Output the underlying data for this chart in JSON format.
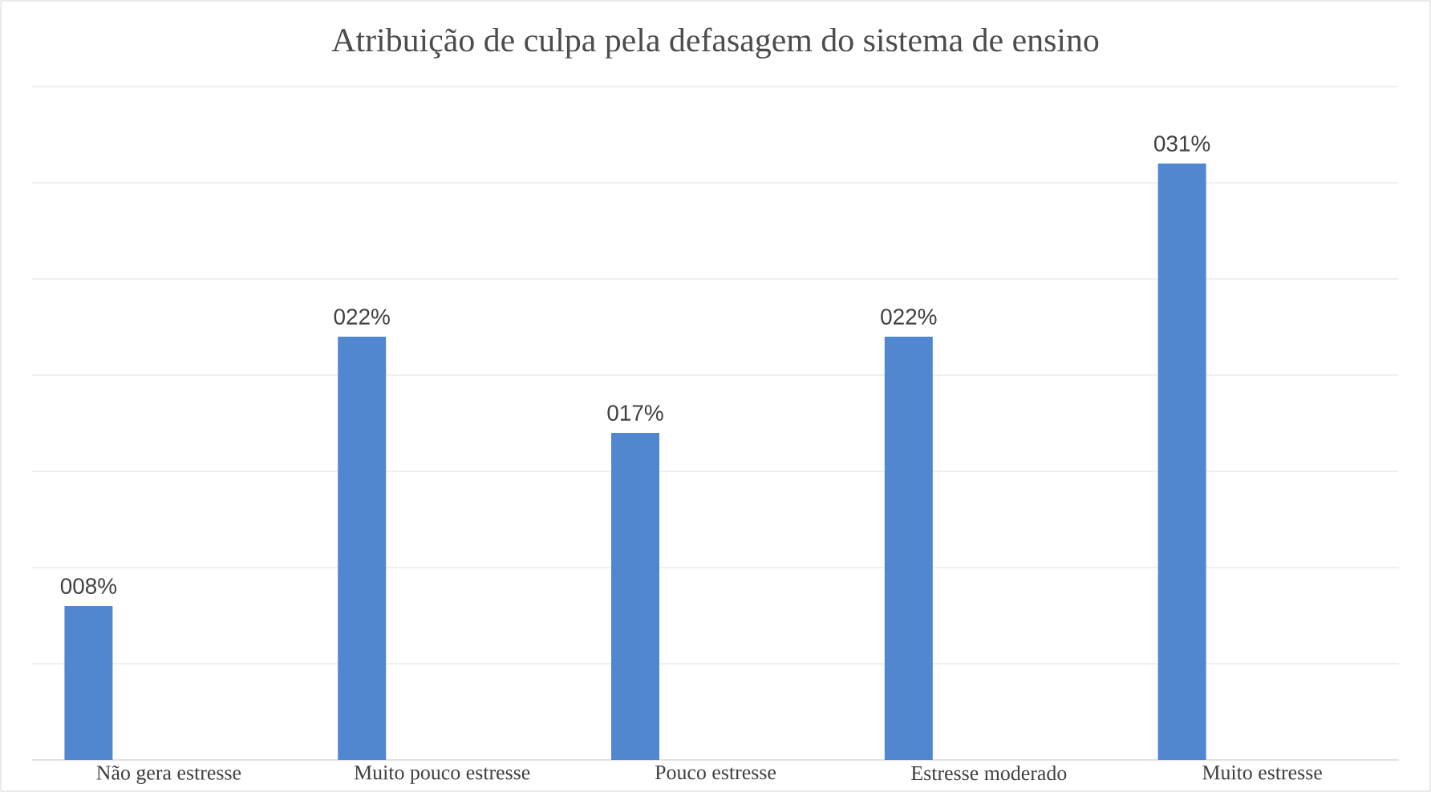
{
  "chart_data": {
    "type": "bar",
    "title": "Atribuição de culpa pela defasagem do sistema de ensino",
    "categories": [
      "Não gera estresse",
      "Muito pouco estresse",
      "Pouco estresse",
      "Estresse moderado",
      "Muito estresse"
    ],
    "values": [
      8,
      22,
      17,
      22,
      31
    ],
    "value_labels": [
      "008%",
      "022%",
      "017%",
      "022%",
      "031%"
    ],
    "color": "#5087cf",
    "ylim": [
      0,
      35
    ],
    "yticks": [
      {
        "value": 0,
        "label": null
      },
      {
        "value": 5,
        "label": null
      },
      {
        "value": 10,
        "label": null
      },
      {
        "value": 15,
        "label": null
      },
      {
        "value": 20,
        "label": null
      },
      {
        "value": 25,
        "label": null
      },
      {
        "value": 30,
        "label": null
      },
      {
        "value": 35,
        "label": null
      }
    ],
    "grid": "y",
    "tick_labels": "x"
  }
}
